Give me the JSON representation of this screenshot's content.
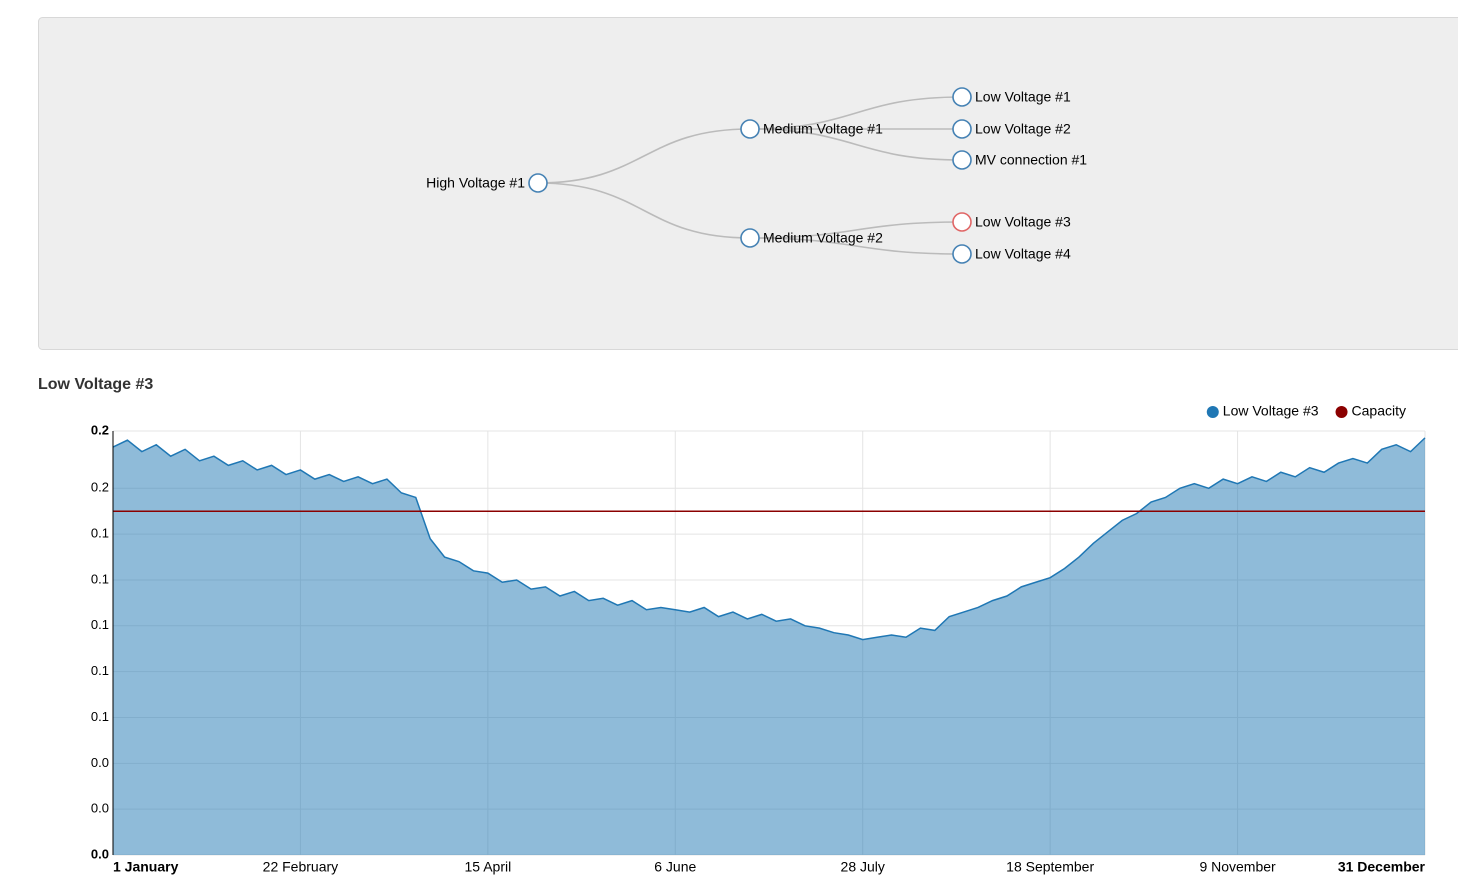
{
  "tree": {
    "nodes": [
      {
        "label": "High Voltage #1"
      },
      {
        "label": "Medium Voltage #1"
      },
      {
        "label": "Medium Voltage #2"
      },
      {
        "label": "Low Voltage #1"
      },
      {
        "label": "Low Voltage #2"
      },
      {
        "label": "MV connection #1"
      },
      {
        "label": "Low Voltage #3"
      },
      {
        "label": "Low Voltage #4"
      }
    ]
  },
  "chart_data": {
    "type": "area",
    "title": "Low Voltage #3",
    "legend": "top-right",
    "grid": true,
    "x": [
      0,
      4,
      8,
      12,
      16,
      20,
      24,
      28,
      32,
      36,
      40,
      44,
      48,
      52,
      56,
      60,
      64,
      68,
      72,
      76,
      80,
      84,
      88,
      92,
      96,
      100,
      104,
      108,
      112,
      116,
      120,
      124,
      128,
      132,
      136,
      140,
      144,
      148,
      152,
      156,
      160,
      164,
      168,
      172,
      176,
      180,
      184,
      188,
      192,
      196,
      200,
      204,
      208,
      212,
      216,
      220,
      224,
      228,
      232,
      236,
      240,
      244,
      248,
      252,
      256,
      260,
      264,
      268,
      272,
      276,
      280,
      284,
      288,
      292,
      296,
      300,
      304,
      308,
      312,
      316,
      320,
      324,
      328,
      332,
      336,
      340,
      344,
      348,
      352,
      356,
      360,
      364
    ],
    "series": [
      {
        "name": "Low Voltage #3",
        "color": "#1f77b4",
        "values": [
          0.178,
          0.181,
          0.176,
          0.179,
          0.174,
          0.177,
          0.172,
          0.174,
          0.17,
          0.172,
          0.168,
          0.17,
          0.166,
          0.168,
          0.164,
          0.166,
          0.163,
          0.165,
          0.162,
          0.164,
          0.158,
          0.156,
          0.138,
          0.13,
          0.128,
          0.124,
          0.123,
          0.119,
          0.12,
          0.116,
          0.117,
          0.113,
          0.115,
          0.111,
          0.112,
          0.109,
          0.111,
          0.107,
          0.108,
          0.107,
          0.106,
          0.108,
          0.104,
          0.106,
          0.103,
          0.105,
          0.102,
          0.103,
          0.1,
          0.099,
          0.097,
          0.096,
          0.094,
          0.095,
          0.096,
          0.095,
          0.099,
          0.098,
          0.104,
          0.106,
          0.108,
          0.111,
          0.113,
          0.117,
          0.119,
          0.121,
          0.125,
          0.13,
          0.136,
          0.141,
          0.146,
          0.149,
          0.154,
          0.156,
          0.16,
          0.162,
          0.16,
          0.164,
          0.162,
          0.165,
          0.163,
          0.167,
          0.165,
          0.169,
          0.167,
          0.171,
          0.173,
          0.171,
          0.177,
          0.179,
          0.176,
          0.182
        ]
      }
    ],
    "capacity": {
      "name": "Capacity",
      "color": "#8b0000",
      "value": 0.15
    },
    "xlim": [
      0,
      364
    ],
    "xticks": [
      {
        "value": 0,
        "label": "1 January"
      },
      {
        "value": 52,
        "label": "22 February"
      },
      {
        "value": 104,
        "label": "15 April"
      },
      {
        "value": 156,
        "label": "6 June"
      },
      {
        "value": 208,
        "label": "28 July"
      },
      {
        "value": 260,
        "label": "18 September"
      },
      {
        "value": 312,
        "label": "9 November"
      },
      {
        "value": 364,
        "label": "31 December"
      }
    ],
    "ylim": [
      0,
      0.185
    ],
    "yticks": [
      {
        "value": 0,
        "label": "0.0"
      },
      {
        "value": 0.02,
        "label": "0.0"
      },
      {
        "value": 0.04,
        "label": "0.0"
      },
      {
        "value": 0.06,
        "label": "0.1"
      },
      {
        "value": 0.08,
        "label": "0.1"
      },
      {
        "value": 0.1,
        "label": "0.1"
      },
      {
        "value": 0.12,
        "label": "0.1"
      },
      {
        "value": 0.14,
        "label": "0.1"
      },
      {
        "value": 0.16,
        "label": "0.2"
      },
      {
        "value": 0.185,
        "label": "0.2"
      }
    ]
  }
}
